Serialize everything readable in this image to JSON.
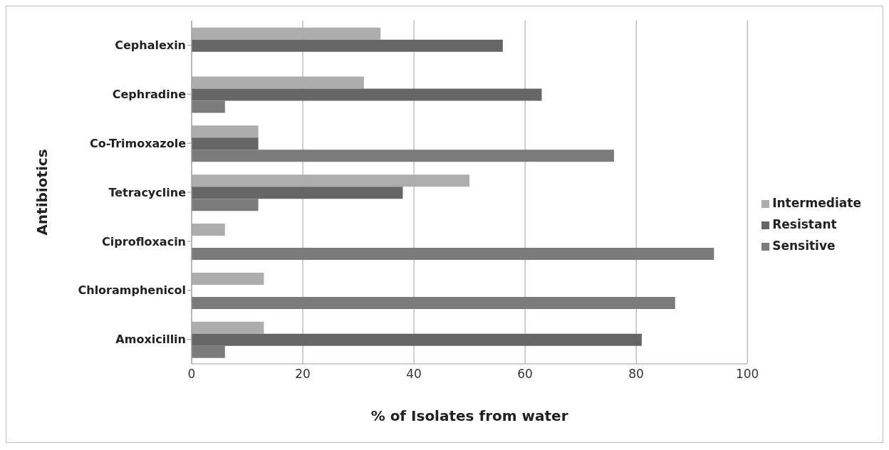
{
  "chart_data": {
    "type": "bar",
    "orientation": "horizontal",
    "xlabel": "% of Isolates from water",
    "ylabel": "Antibiotics",
    "categories": [
      "Cephalexin",
      "Cephradine",
      "Co-Trimoxazole",
      "Tetracycline",
      "Ciprofloxacin",
      "Chloramphenicol",
      "Amoxicillin"
    ],
    "series": [
      {
        "name": "Intermediate",
        "color": "#adadad",
        "values": [
          34,
          31,
          12,
          50,
          6,
          13,
          13
        ]
      },
      {
        "name": "Resistant",
        "color": "#666666",
        "values": [
          56,
          63,
          12,
          38,
          0,
          0,
          81
        ]
      },
      {
        "name": "Sensitive",
        "color": "#7b7b7b",
        "values": [
          0,
          6,
          76,
          12,
          94,
          87,
          6
        ]
      }
    ],
    "xlim": [
      0,
      100
    ],
    "xticks": [
      0,
      20,
      40,
      60,
      80,
      100
    ],
    "grid": "x",
    "legend": "right"
  }
}
